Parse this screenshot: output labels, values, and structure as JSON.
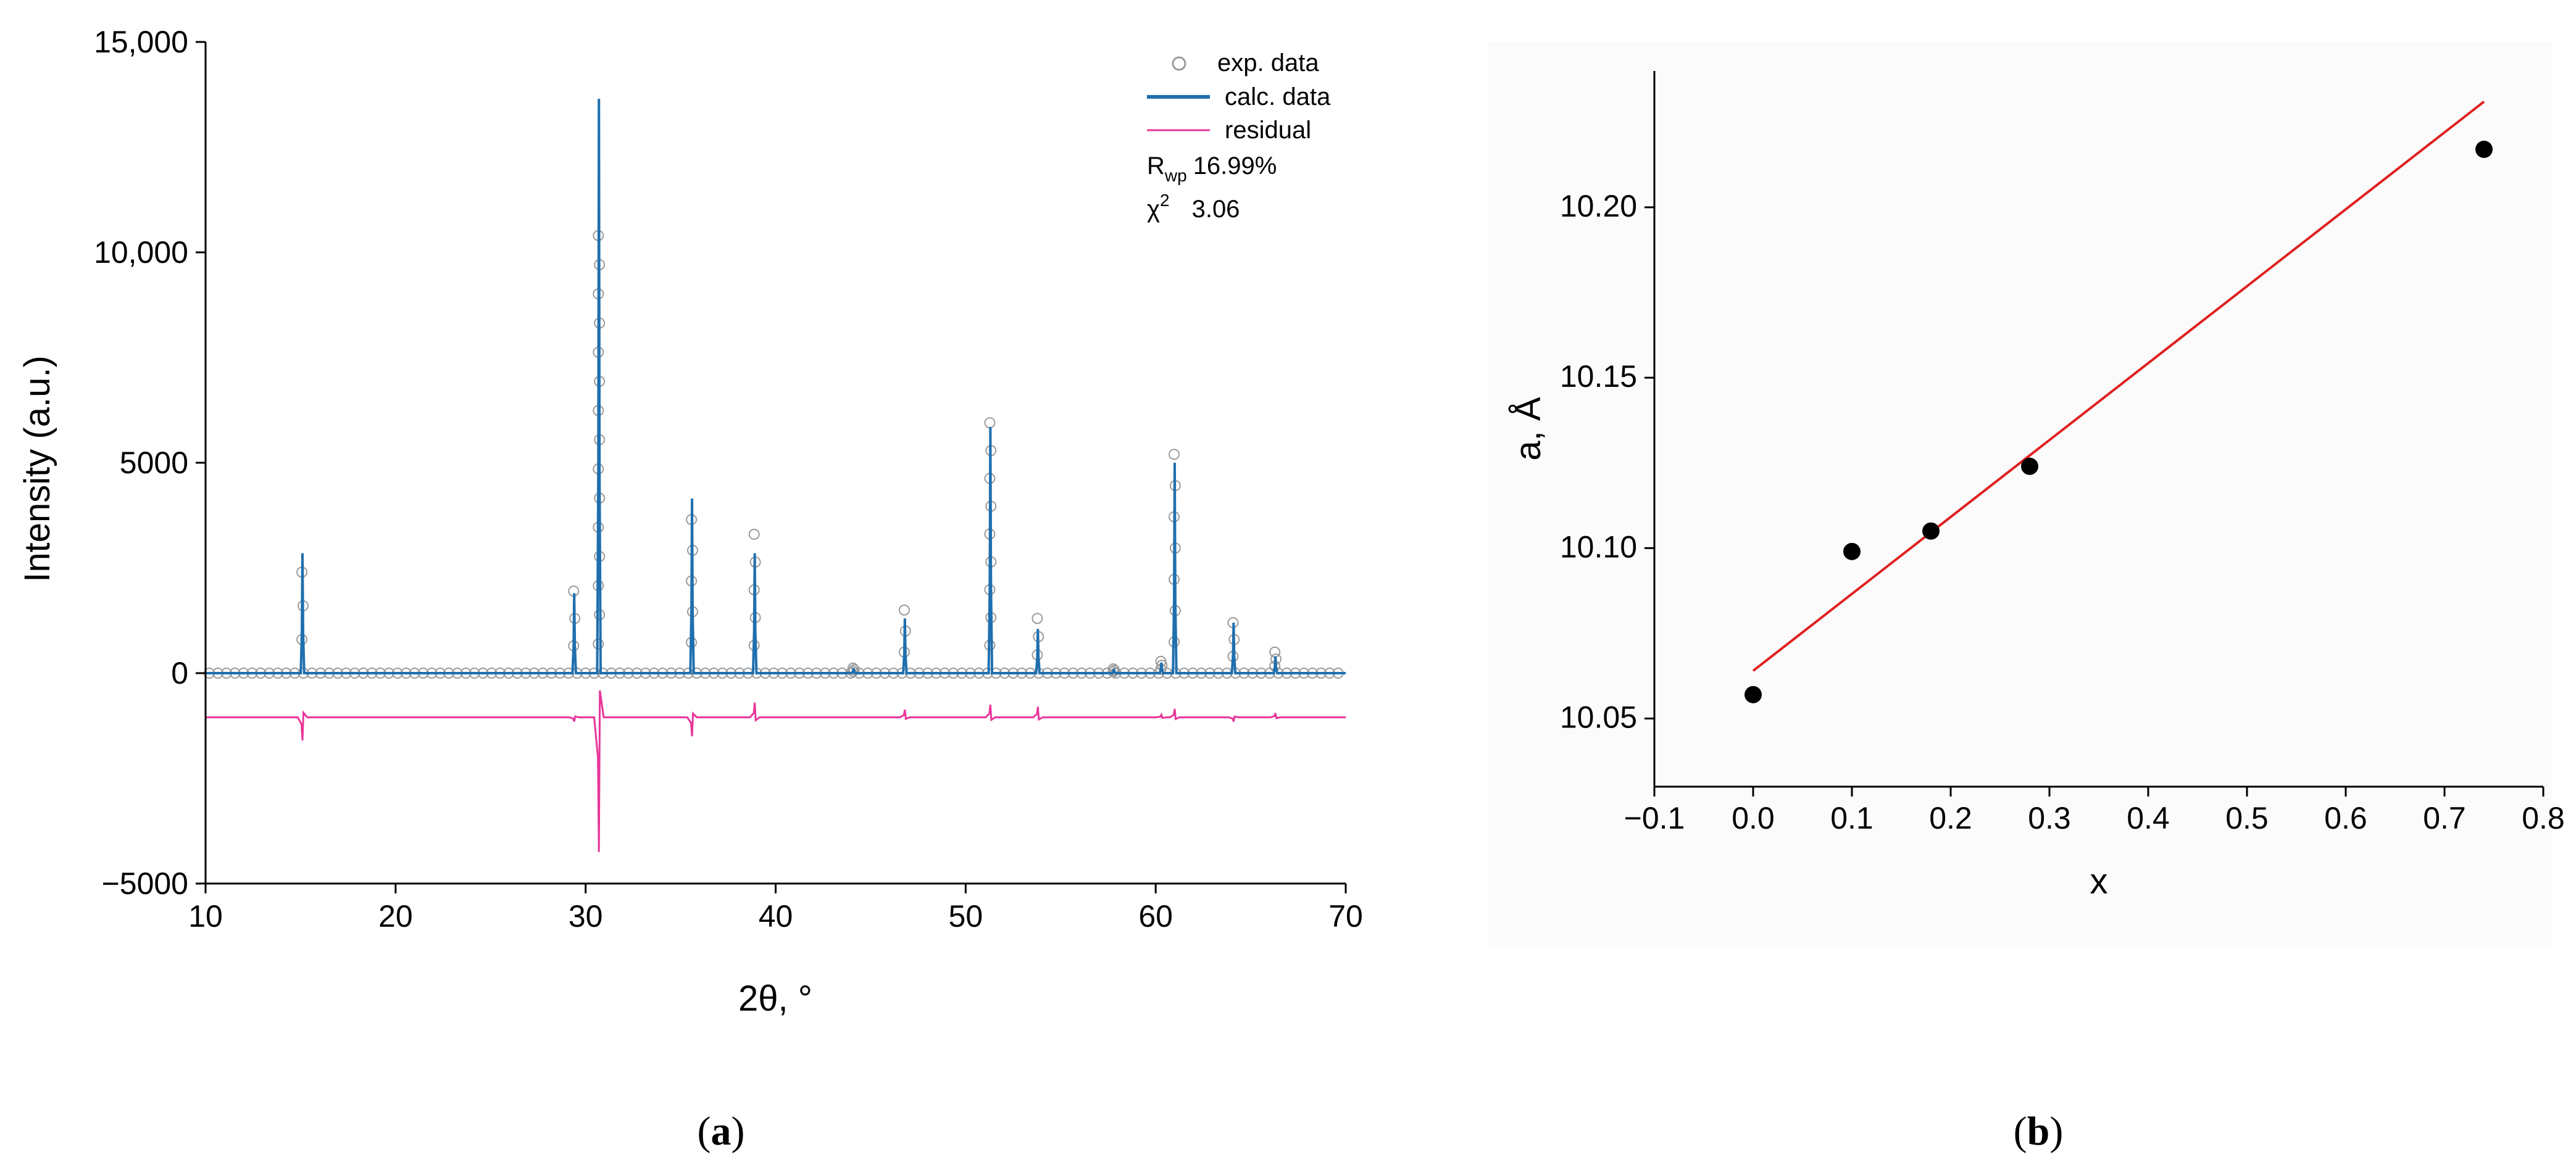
{
  "chart_data": [
    {
      "type": "line",
      "panel": "a",
      "panel_label": {
        "open": "(",
        "letter": "a",
        "close": ")"
      },
      "title": "",
      "xlabel": "2θ, °",
      "ylabel": "Intensity (a.u.)",
      "xlim": [
        10,
        70
      ],
      "ylim": [
        -5000,
        15000
      ],
      "xticks": [
        10,
        20,
        30,
        40,
        50,
        60,
        70
      ],
      "xtick_labels": [
        "10",
        "20",
        "30",
        "40",
        "50",
        "60",
        "70"
      ],
      "yticks": [
        -5000,
        0,
        5000,
        10000,
        15000
      ],
      "ytick_labels": [
        "−5000",
        "0",
        "5000",
        "10,000",
        "15,000"
      ],
      "legend": {
        "position": "top-right",
        "entries": [
          "exp. data",
          "calc. data",
          "residual"
        ],
        "stats": [
          {
            "symbol": "R",
            "sub": "wp",
            "value": "16.99%"
          },
          {
            "symbol": "χ",
            "sup": "2",
            "value": "3.06"
          }
        ]
      },
      "colors": {
        "exp": "#9a9a9a",
        "calc": "#1f6fae",
        "residual": "#e8359a"
      },
      "background_level": 0,
      "residual_offset": -1050,
      "peaks": [
        {
          "x": 15.1,
          "calc": 2850,
          "exp": 2400,
          "residual": -550
        },
        {
          "x": 29.4,
          "calc": 1900,
          "exp": 1950,
          "residual": -100
        },
        {
          "x": 30.7,
          "calc": 13650,
          "exp": 10400,
          "residual": -3200
        },
        {
          "x": 35.6,
          "calc": 4150,
          "exp": 3650,
          "residual": -450
        },
        {
          "x": 38.9,
          "calc": 2850,
          "exp": 3300,
          "residual": 350
        },
        {
          "x": 44.1,
          "calc": 120,
          "exp": 120,
          "residual": 0
        },
        {
          "x": 46.8,
          "calc": 1300,
          "exp": 1500,
          "residual": 180
        },
        {
          "x": 51.3,
          "calc": 5850,
          "exp": 5950,
          "residual": 300
        },
        {
          "x": 53.8,
          "calc": 1050,
          "exp": 1300,
          "residual": 250
        },
        {
          "x": 57.8,
          "calc": 100,
          "exp": 100,
          "residual": 0
        },
        {
          "x": 60.3,
          "calc": 250,
          "exp": 280,
          "residual": 60
        },
        {
          "x": 61.0,
          "calc": 5000,
          "exp": 5200,
          "residual": 200
        },
        {
          "x": 64.1,
          "calc": 1200,
          "exp": 1200,
          "residual": -100
        },
        {
          "x": 66.3,
          "calc": 400,
          "exp": 500,
          "residual": 100
        }
      ]
    },
    {
      "type": "scatter",
      "panel": "b",
      "panel_label": {
        "open": "(",
        "letter": "b",
        "close": ")"
      },
      "title": "",
      "xlabel": "x",
      "ylabel": "a, Å",
      "xlim": [
        -0.1,
        0.8
      ],
      "ylim": [
        10.03,
        10.24
      ],
      "xticks": [
        -0.1,
        0.0,
        0.1,
        0.2,
        0.3,
        0.4,
        0.5,
        0.6,
        0.7,
        0.8
      ],
      "xtick_labels": [
        "−0.1",
        "0.0",
        "0.1",
        "0.2",
        "0.3",
        "0.4",
        "0.5",
        "0.6",
        "0.7",
        "0.8"
      ],
      "yticks": [
        10.05,
        10.1,
        10.15,
        10.2
      ],
      "ytick_labels": [
        "10.05",
        "10.10",
        "10.15",
        "10.20"
      ],
      "points": [
        {
          "x": 0.0,
          "y": 10.057
        },
        {
          "x": 0.1,
          "y": 10.099
        },
        {
          "x": 0.18,
          "y": 10.105
        },
        {
          "x": 0.28,
          "y": 10.124
        },
        {
          "x": 0.74,
          "y": 10.217
        }
      ],
      "fit_line": {
        "x": [
          0.0,
          0.74
        ],
        "y": [
          10.064,
          10.231
        ],
        "color": "#e02020"
      },
      "marker_color": "#000000"
    }
  ]
}
